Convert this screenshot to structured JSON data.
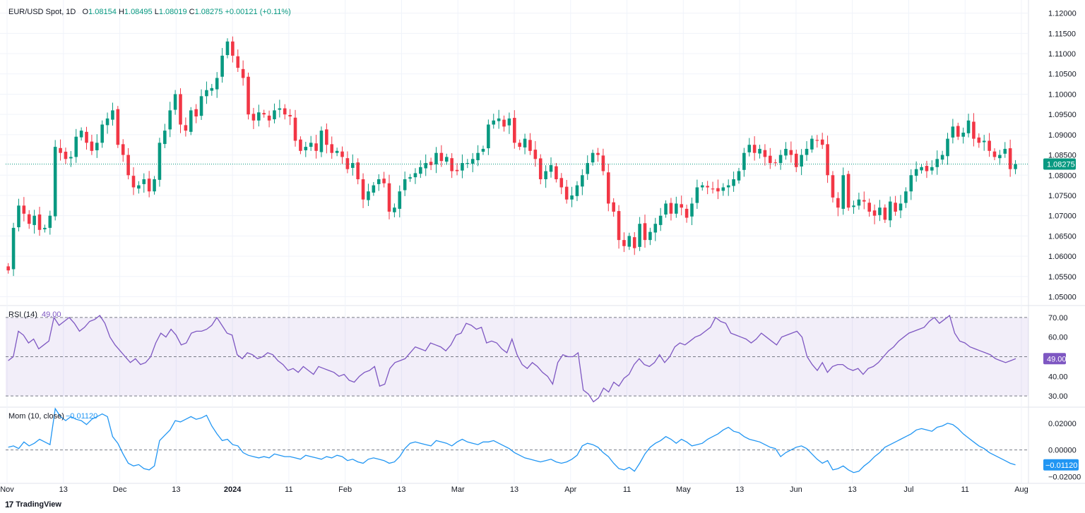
{
  "legend": {
    "symbol": "EUR/USD Spot, 1D",
    "o_label": "O",
    "open": "1.08154",
    "h_label": "H",
    "high": "1.08495",
    "l_label": "L",
    "low": "1.08019",
    "c_label": "C",
    "close": "1.08275",
    "change": "+0.00121 (+0.11%)"
  },
  "rsi": {
    "label": "RSI (14)",
    "value": "49.00"
  },
  "mom": {
    "label": "Mom (10, close)",
    "value": "−0.01120"
  },
  "brand": {
    "logo": "17",
    "name": "TradingView"
  },
  "colors": {
    "up": "#089981",
    "down": "#f23645",
    "rsi": "#7e57c2",
    "mom": "#2196f3",
    "last_price_bg": "#089981"
  },
  "chart_data": [
    {
      "type": "candlestick",
      "title": "EUR/USD Spot, 1D",
      "ylim": [
        1.048,
        1.1215
      ],
      "yticks": [
        "1.12000",
        "1.11500",
        "1.11000",
        "1.10500",
        "1.10000",
        "1.09500",
        "1.09000",
        "1.08500",
        "1.08000",
        "1.07500",
        "1.07000",
        "1.06500",
        "1.06000",
        "1.05500",
        "1.05000"
      ],
      "last_price": "1.08275",
      "xticks": [
        "Nov",
        "13",
        "Dec",
        "13",
        "2024",
        "11",
        "Feb",
        "13",
        "Mar",
        "13",
        "Apr",
        "11",
        "May",
        "13",
        "Jun",
        "13",
        "Jul",
        "11",
        "Aug"
      ],
      "closes": [
        1.0565,
        1.067,
        1.0725,
        1.0705,
        1.068,
        1.07,
        1.0665,
        1.067,
        1.07,
        1.087,
        1.0855,
        1.084,
        1.0845,
        1.0895,
        1.091,
        1.088,
        1.086,
        1.088,
        1.0925,
        1.094,
        1.096,
        1.0875,
        1.085,
        1.08,
        1.077,
        1.0775,
        1.079,
        1.076,
        1.079,
        1.088,
        1.091,
        1.096,
        1.1,
        1.0925,
        1.091,
        1.096,
        1.0945,
        1.0995,
        1.101,
        1.1015,
        1.104,
        1.1095,
        1.113,
        1.1095,
        1.1065,
        1.104,
        1.095,
        1.0935,
        1.0955,
        1.095,
        1.0935,
        1.096,
        1.0965,
        1.095,
        1.0945,
        1.0885,
        1.086,
        1.087,
        1.088,
        1.086,
        1.091,
        1.0875,
        1.0855,
        1.086,
        1.0845,
        1.0815,
        1.083,
        1.079,
        1.074,
        1.076,
        1.0775,
        1.079,
        1.078,
        1.071,
        1.072,
        1.076,
        1.079,
        1.0795,
        1.0805,
        1.082,
        1.083,
        1.0825,
        1.0855,
        1.0835,
        1.0845,
        1.081,
        1.081,
        1.083,
        1.083,
        1.084,
        1.0855,
        1.0865,
        1.0925,
        1.0935,
        1.094,
        1.092,
        1.094,
        1.088,
        1.087,
        1.089,
        1.086,
        1.084,
        1.079,
        1.081,
        1.0825,
        1.079,
        1.077,
        1.074,
        1.075,
        1.0775,
        1.08,
        1.083,
        1.0855,
        1.085,
        1.081,
        1.073,
        1.071,
        1.064,
        1.0625,
        1.065,
        1.062,
        1.068,
        1.064,
        1.066,
        1.068,
        1.07,
        1.073,
        1.0705,
        1.073,
        1.072,
        1.0695,
        1.073,
        1.077,
        1.0775,
        1.077,
        1.0765,
        1.076,
        1.077,
        1.0775,
        1.079,
        1.081,
        1.0855,
        1.0875,
        1.0855,
        1.0865,
        1.0845,
        1.083,
        1.083,
        1.085,
        1.0865,
        1.085,
        1.082,
        1.085,
        1.0865,
        1.089,
        1.0885,
        1.0875,
        1.08,
        1.0745,
        1.072,
        1.08,
        1.072,
        1.0725,
        1.074,
        1.0735,
        1.071,
        1.07,
        1.072,
        1.069,
        1.0735,
        1.071,
        1.073,
        1.076,
        1.08,
        1.0815,
        1.082,
        1.081,
        1.082,
        1.084,
        1.085,
        1.089,
        1.092,
        1.0895,
        1.0905,
        1.0935,
        1.089,
        1.088,
        1.0885,
        1.086,
        1.0845,
        1.085,
        1.0865,
        1.0815,
        1.0827
      ]
    },
    {
      "type": "line",
      "title": "RSI (14)",
      "ylim": [
        25,
        75
      ],
      "yticks": [
        "70.00",
        "60.00",
        "40.00",
        "30.00"
      ],
      "bands": [
        30,
        50,
        70
      ],
      "last_value": "49.00",
      "values": [
        48,
        50,
        63,
        61,
        57,
        59,
        54,
        56,
        58,
        70,
        66,
        68,
        70,
        67,
        63,
        65,
        68,
        69,
        71,
        67,
        60,
        56,
        53,
        50,
        47,
        49,
        46,
        47,
        50,
        57,
        62,
        60,
        64,
        61,
        56,
        57,
        62,
        63,
        63,
        64,
        66,
        70,
        66,
        62,
        61,
        51,
        49,
        52,
        51,
        49,
        50,
        52,
        51,
        48,
        46,
        43,
        44,
        42,
        45,
        43,
        41,
        45,
        44,
        43,
        42,
        40,
        41,
        38,
        37,
        40,
        42,
        43,
        45,
        35,
        36,
        44,
        47,
        48,
        49,
        52,
        55,
        54,
        53,
        57,
        56,
        55,
        53,
        56,
        61,
        62,
        67,
        66,
        64,
        65,
        57,
        58,
        57,
        54,
        52,
        59,
        51,
        46,
        44,
        47,
        45,
        42,
        40,
        36,
        47,
        51,
        50,
        50,
        52,
        33,
        31,
        27,
        29,
        34,
        32,
        37,
        35,
        39,
        41,
        46,
        49,
        46,
        45,
        47,
        51,
        47,
        50,
        55,
        57,
        56,
        58,
        60,
        61,
        63,
        65,
        70,
        68,
        67,
        62,
        61,
        60,
        59,
        57,
        59,
        62,
        60,
        58,
        56,
        60,
        61,
        62,
        63,
        60,
        50,
        46,
        43,
        47,
        42,
        45,
        46,
        46,
        44,
        43,
        44,
        41,
        44,
        45,
        47,
        50,
        53,
        55,
        58,
        60,
        62,
        63,
        64,
        65,
        68,
        70,
        67,
        69,
        71,
        62,
        58,
        57,
        55,
        54,
        53,
        52,
        51,
        49,
        48,
        47,
        48,
        49
      ]
    },
    {
      "type": "line",
      "title": "Mom (10, close)",
      "ylim": [
        -0.0235,
        0.0305
      ],
      "yticks": [
        "0.02000",
        "0.00000",
        "−0.02000"
      ],
      "zero_line": 0,
      "last_value": "−0.01120",
      "values": [
        0.002,
        0.003,
        0.001,
        0.006,
        0.003,
        0.005,
        0.008,
        0.006,
        0.004,
        0.031,
        0.025,
        0.022,
        0.025,
        0.023,
        0.022,
        0.019,
        0.023,
        0.025,
        0.027,
        0.025,
        0.01,
        0.005,
        -0.003,
        -0.01,
        -0.012,
        -0.011,
        -0.014,
        -0.015,
        -0.012,
        0.007,
        0.011,
        0.015,
        0.022,
        0.021,
        0.023,
        0.025,
        0.023,
        0.024,
        0.026,
        0.018,
        0.012,
        0.007,
        0.008,
        0.004,
        0.003,
        -0.002,
        -0.004,
        -0.005,
        -0.006,
        -0.005,
        -0.006,
        -0.003,
        -0.004,
        -0.005,
        -0.005,
        -0.006,
        -0.007,
        -0.004,
        -0.005,
        -0.006,
        -0.007,
        -0.005,
        -0.006,
        -0.004,
        -0.005,
        -0.008,
        -0.007,
        -0.009,
        -0.01,
        -0.007,
        -0.006,
        -0.007,
        -0.008,
        -0.01,
        -0.009,
        -0.005,
        0.001,
        0.005,
        0.006,
        0.005,
        0.004,
        0.003,
        0.007,
        0.006,
        0.005,
        0.003,
        0.006,
        0.008,
        0.006,
        0.005,
        0.004,
        0.006,
        0.006,
        0.007,
        0.005,
        0.003,
        0.001,
        -0.002,
        -0.004,
        -0.006,
        -0.007,
        -0.008,
        -0.009,
        -0.008,
        -0.007,
        -0.009,
        -0.01,
        -0.009,
        -0.007,
        -0.004,
        0.003,
        0.005,
        0.004,
        0.002,
        -0.002,
        -0.005,
        -0.01,
        -0.014,
        -0.015,
        -0.013,
        -0.016,
        -0.01,
        -0.003,
        0.002,
        0.005,
        0.007,
        0.01,
        0.008,
        0.005,
        0.008,
        0.006,
        0.003,
        0.004,
        0.005,
        0.008,
        0.01,
        0.012,
        0.015,
        0.017,
        0.014,
        0.013,
        0.01,
        0.008,
        0.007,
        0.006,
        0.004,
        0.002,
        0.001,
        -0.005,
        -0.002,
        0.0,
        0.002,
        0.003,
        0.001,
        -0.003,
        -0.007,
        -0.01,
        -0.008,
        -0.015,
        -0.014,
        -0.012,
        -0.015,
        -0.017,
        -0.016,
        -0.012,
        -0.009,
        -0.005,
        -0.002,
        0.002,
        0.004,
        0.006,
        0.008,
        0.01,
        0.012,
        0.015,
        0.016,
        0.015,
        0.014,
        0.017,
        0.018,
        0.02,
        0.019,
        0.016,
        0.012,
        0.009,
        0.006,
        0.003,
        0.001,
        -0.002,
        -0.004,
        -0.006,
        -0.008,
        -0.01,
        -0.0112
      ]
    }
  ]
}
